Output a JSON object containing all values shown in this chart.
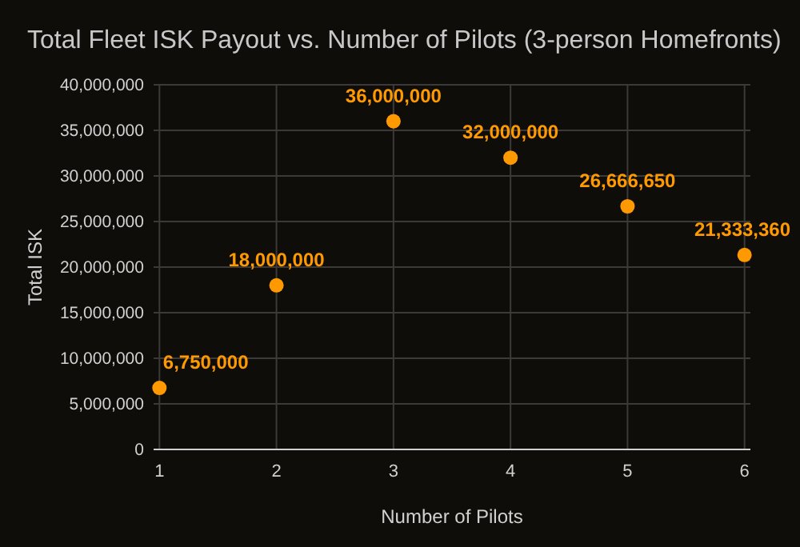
{
  "chart_data": {
    "type": "scatter",
    "title": "Total Fleet ISK Payout vs. Number of Pilots (3-person Homefronts)",
    "xlabel": "Number of Pilots",
    "ylabel": "Total ISK",
    "x": [
      1,
      2,
      3,
      4,
      5,
      6
    ],
    "series": [
      {
        "color": "#ff9900",
        "values": [
          6750000,
          18000000,
          36000000,
          32000000,
          26666650,
          21333360
        ],
        "value_labels": [
          "6,750,000",
          "18,000,000",
          "36,000,000",
          "32,000,000",
          "26,666,650",
          "21,333,360"
        ]
      }
    ],
    "xlim": [
      0.95,
      6.05
    ],
    "xticks": [
      1,
      2,
      3,
      4,
      5,
      6
    ],
    "ylim": [
      0,
      40000000
    ],
    "yticks": [
      {
        "value": 0,
        "label": "0"
      },
      {
        "value": 5000000,
        "label": "5,000,000"
      },
      {
        "value": 10000000,
        "label": "10,000,000"
      },
      {
        "value": 15000000,
        "label": "15,000,000"
      },
      {
        "value": 20000000,
        "label": "20,000,000"
      },
      {
        "value": 25000000,
        "label": "25,000,000"
      },
      {
        "value": 30000000,
        "label": "30,000,000"
      },
      {
        "value": 35000000,
        "label": "35,000,000"
      },
      {
        "value": 40000000,
        "label": "40,000,000"
      }
    ],
    "grid": true,
    "marker": "circle"
  }
}
